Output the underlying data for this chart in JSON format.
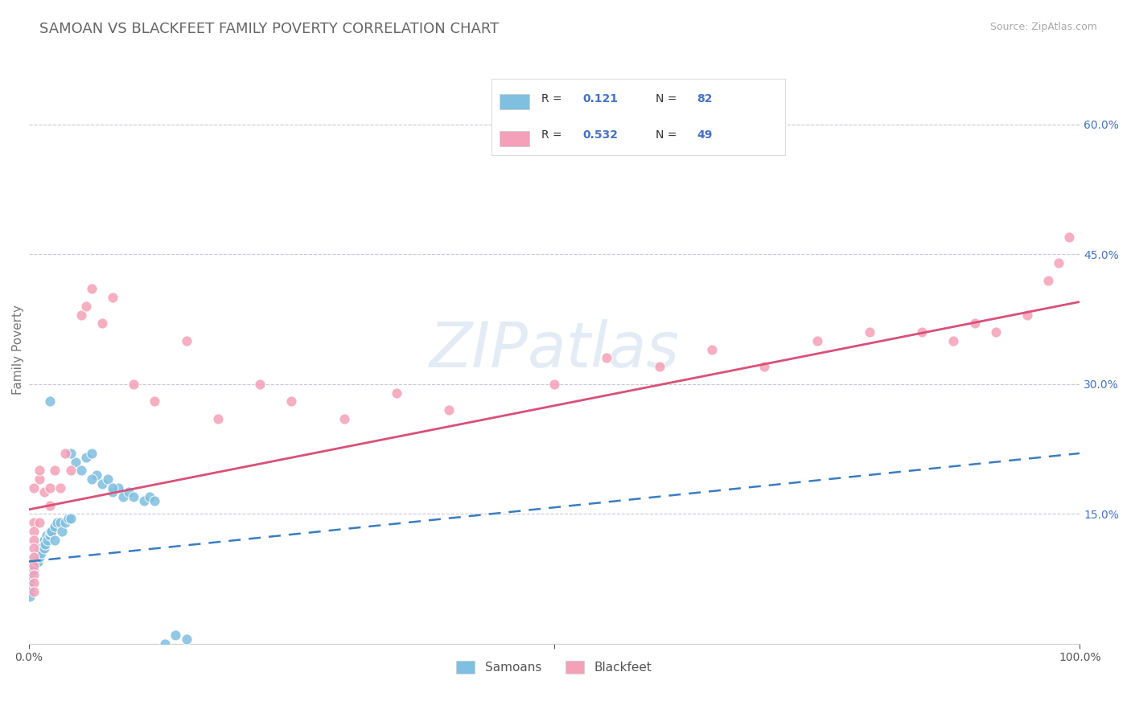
{
  "title": "SAMOAN VS BLACKFEET FAMILY POVERTY CORRELATION CHART",
  "source": "Source: ZipAtlas.com",
  "ylabel": "Family Poverty",
  "xlim": [
    0,
    1.0
  ],
  "ylim": [
    0,
    0.68
  ],
  "y_ticks_right": [
    0.15,
    0.3,
    0.45,
    0.6
  ],
  "y_tick_labels_right": [
    "15.0%",
    "30.0%",
    "45.0%",
    "60.0%"
  ],
  "legend_R_blue": "0.121",
  "legend_N_blue": "82",
  "legend_R_pink": "0.532",
  "legend_N_pink": "49",
  "blue_color": "#7fbfdf",
  "pink_color": "#f4a0b8",
  "blue_line_color": "#3a7dbf",
  "pink_line_color": "#d9507a",
  "watermark": "ZIPatlas",
  "background_color": "#ffffff",
  "grid_color": "#c8c8d8",
  "blue_line_x0": 0.0,
  "blue_line_y0": 0.095,
  "blue_line_x1": 1.0,
  "blue_line_y1": 0.22,
  "pink_line_x0": 0.0,
  "pink_line_y0": 0.155,
  "pink_line_x1": 1.0,
  "pink_line_y1": 0.395,
  "samoan_x": [
    0.001,
    0.001,
    0.001,
    0.001,
    0.001,
    0.001,
    0.001,
    0.001,
    0.001,
    0.001,
    0.001,
    0.001,
    0.001,
    0.001,
    0.001,
    0.001,
    0.001,
    0.001,
    0.001,
    0.001,
    0.002,
    0.002,
    0.002,
    0.003,
    0.003,
    0.004,
    0.004,
    0.005,
    0.005,
    0.005,
    0.006,
    0.007,
    0.007,
    0.008,
    0.008,
    0.009,
    0.009,
    0.01,
    0.01,
    0.011,
    0.012,
    0.012,
    0.013,
    0.014,
    0.015,
    0.015,
    0.016,
    0.017,
    0.018,
    0.02,
    0.021,
    0.022,
    0.025,
    0.025,
    0.027,
    0.03,
    0.032,
    0.035,
    0.038,
    0.04,
    0.045,
    0.05,
    0.055,
    0.06,
    0.065,
    0.07,
    0.075,
    0.08,
    0.085,
    0.09,
    0.095,
    0.1,
    0.11,
    0.115,
    0.12,
    0.13,
    0.14,
    0.15,
    0.02,
    0.04,
    0.06,
    0.08
  ],
  "samoan_y": [
    0.09,
    0.09,
    0.09,
    0.09,
    0.085,
    0.085,
    0.085,
    0.08,
    0.08,
    0.08,
    0.075,
    0.075,
    0.075,
    0.07,
    0.07,
    0.065,
    0.065,
    0.06,
    0.06,
    0.055,
    0.09,
    0.085,
    0.08,
    0.09,
    0.085,
    0.095,
    0.09,
    0.1,
    0.095,
    0.085,
    0.1,
    0.1,
    0.095,
    0.105,
    0.095,
    0.1,
    0.095,
    0.105,
    0.1,
    0.11,
    0.115,
    0.105,
    0.115,
    0.12,
    0.12,
    0.11,
    0.115,
    0.125,
    0.12,
    0.125,
    0.13,
    0.13,
    0.135,
    0.12,
    0.14,
    0.14,
    0.13,
    0.14,
    0.145,
    0.145,
    0.21,
    0.2,
    0.215,
    0.22,
    0.195,
    0.185,
    0.19,
    0.175,
    0.18,
    0.17,
    0.175,
    0.17,
    0.165,
    0.17,
    0.165,
    0.0,
    0.01,
    0.005,
    0.28,
    0.22,
    0.19,
    0.18
  ],
  "blackfeet_x": [
    0.005,
    0.005,
    0.005,
    0.005,
    0.005,
    0.005,
    0.005,
    0.005,
    0.005,
    0.005,
    0.01,
    0.01,
    0.01,
    0.015,
    0.02,
    0.02,
    0.025,
    0.03,
    0.035,
    0.04,
    0.05,
    0.055,
    0.06,
    0.07,
    0.08,
    0.1,
    0.12,
    0.15,
    0.18,
    0.22,
    0.25,
    0.3,
    0.35,
    0.4,
    0.5,
    0.55,
    0.6,
    0.65,
    0.7,
    0.75,
    0.8,
    0.85,
    0.88,
    0.9,
    0.92,
    0.95,
    0.97,
    0.98,
    0.99
  ],
  "blackfeet_y": [
    0.14,
    0.13,
    0.12,
    0.11,
    0.1,
    0.09,
    0.08,
    0.07,
    0.06,
    0.18,
    0.19,
    0.14,
    0.2,
    0.175,
    0.18,
    0.16,
    0.2,
    0.18,
    0.22,
    0.2,
    0.38,
    0.39,
    0.41,
    0.37,
    0.4,
    0.3,
    0.28,
    0.35,
    0.26,
    0.3,
    0.28,
    0.26,
    0.29,
    0.27,
    0.3,
    0.33,
    0.32,
    0.34,
    0.32,
    0.35,
    0.36,
    0.36,
    0.35,
    0.37,
    0.36,
    0.38,
    0.42,
    0.44,
    0.47
  ]
}
